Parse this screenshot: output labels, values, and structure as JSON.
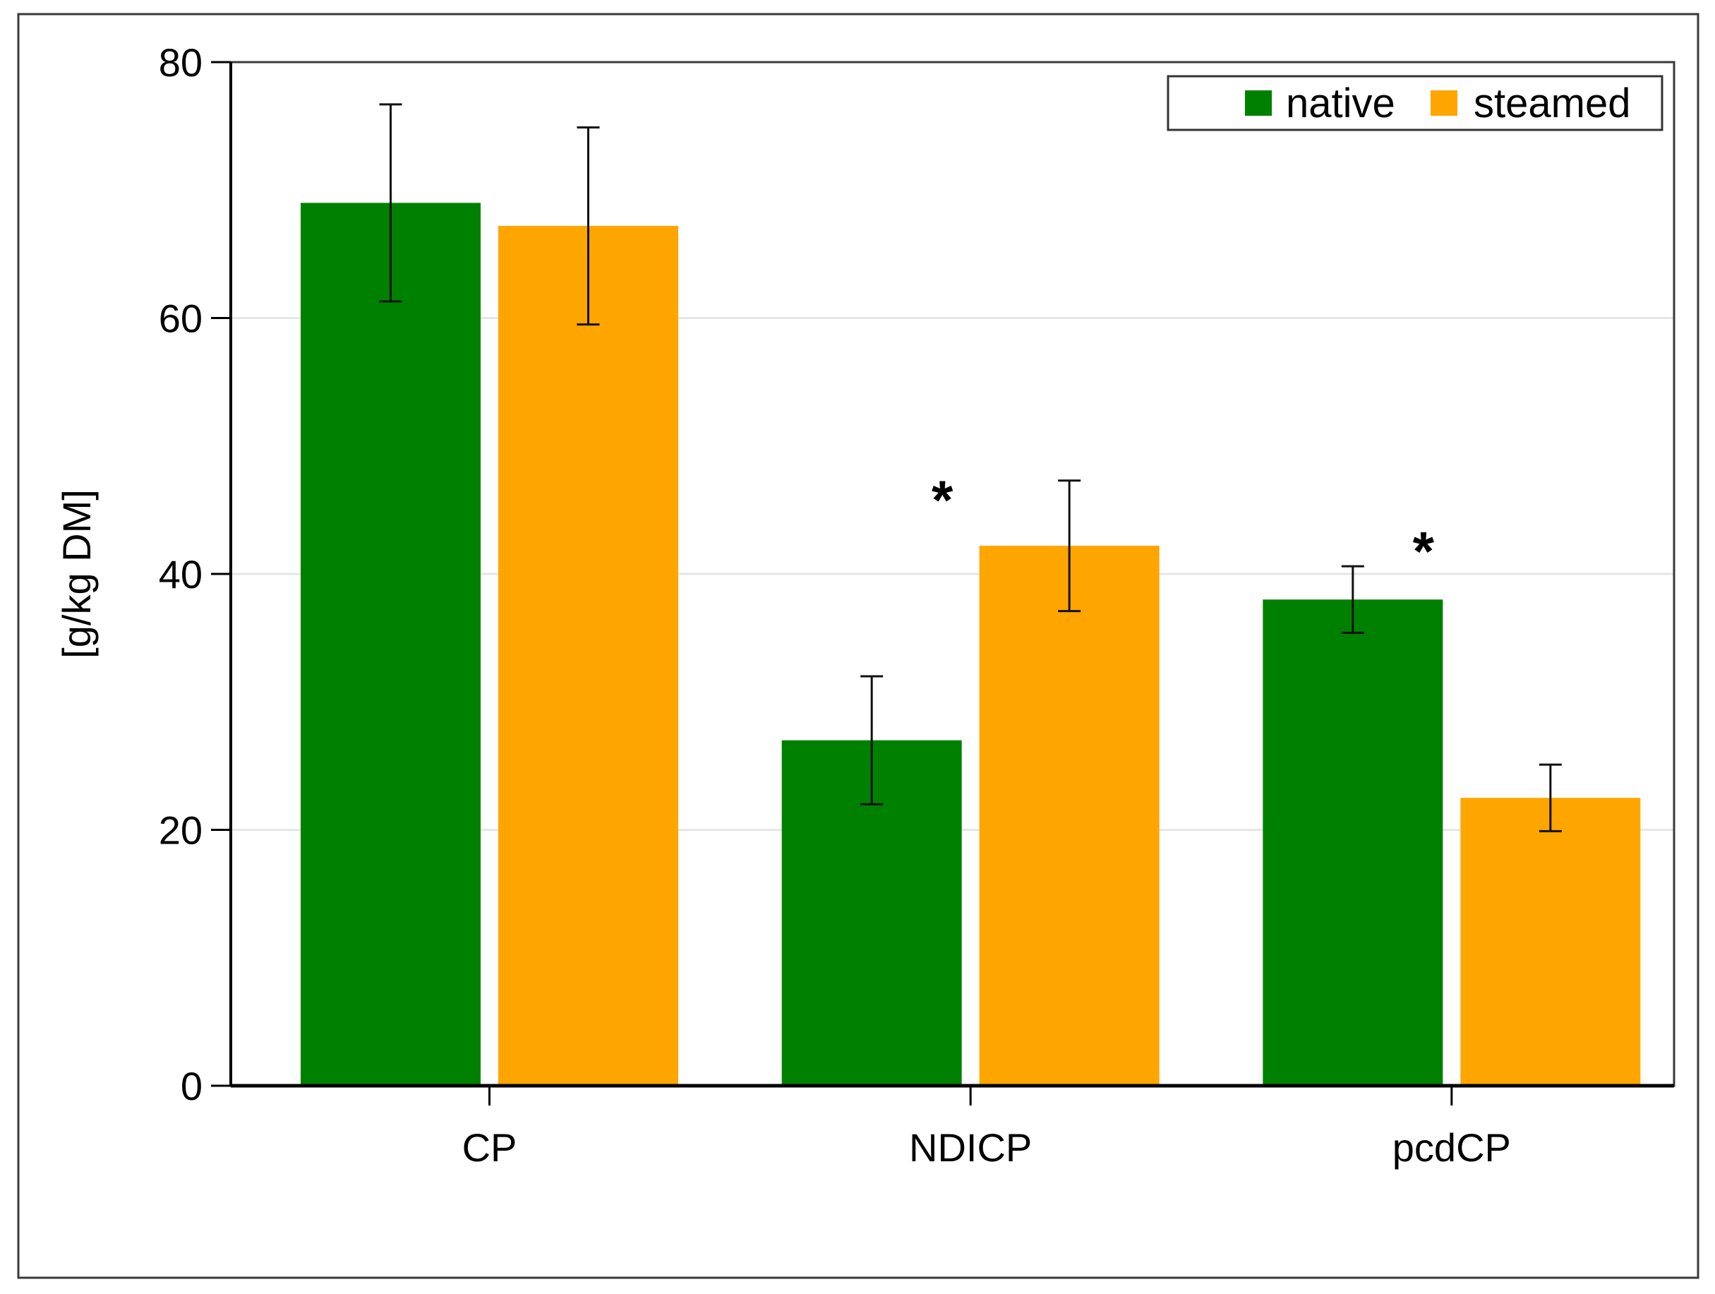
{
  "colors": {
    "native": "#008000",
    "steamed": "#FFA500",
    "grid": "#e6e6e6",
    "axis": "#000000"
  },
  "chart_data": {
    "type": "bar",
    "title": "",
    "xlabel": "",
    "ylabel": "[g/kg DM]",
    "ylim": [
      0,
      80
    ],
    "yticks": [
      0,
      20,
      40,
      60,
      80
    ],
    "grid": true,
    "legend_position": "top-right",
    "categories": [
      "CP",
      "NDICP",
      "pcdCP"
    ],
    "series": [
      {
        "name": "native",
        "color": "#008000",
        "values": [
          69.0,
          27.0,
          38.0
        ],
        "errors": [
          7.7,
          5.0,
          2.6
        ]
      },
      {
        "name": "steamed",
        "color": "#FFA500",
        "values": [
          67.2,
          42.2,
          22.5
        ],
        "errors": [
          7.7,
          5.1,
          2.6
        ]
      }
    ],
    "annotations": [
      {
        "text": "*",
        "category": "NDICP",
        "y": 46.5
      },
      {
        "text": "*",
        "category": "pcdCP",
        "y": 42.5
      }
    ]
  }
}
